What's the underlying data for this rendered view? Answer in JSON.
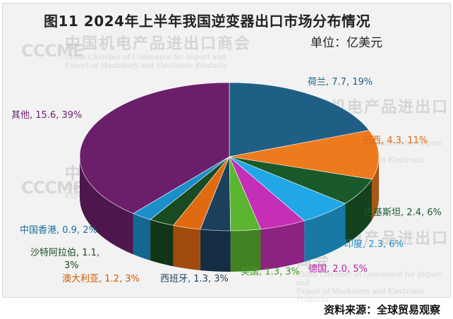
{
  "title": "图11    2024年上半年我国逆变器出口市场分布情况",
  "unit": "单位：亿美元",
  "source": "资料来源：全球贸易观察",
  "watermark": {
    "cn": "中国机电产品进出口商会",
    "en1": "China Chamber of Commerce for Import and",
    "en2": "Export of Machinery and Electronic Products",
    "logo": "CCCME"
  },
  "chart_data": {
    "type": "pie",
    "title": "2024年上半年我国逆变器出口市场分布情况",
    "unit": "亿美元",
    "slices": [
      {
        "name": "荷兰",
        "value": 7.7,
        "percent": "19%",
        "label": "荷兰, 7.7, 19%",
        "color": "#1f5f86",
        "label_color": "#1f5f86"
      },
      {
        "name": "巴西",
        "value": 4.3,
        "percent": "11%",
        "label": "巴西, 4.3, 11%",
        "color": "#ee7a1e",
        "label_color": "#e06a10"
      },
      {
        "name": "巴基斯坦",
        "value": 2.4,
        "percent": "6%",
        "label": "巴基斯坦, 2.4, 6%",
        "color": "#1a5a2a",
        "label_color": "#1a5a2a"
      },
      {
        "name": "印度",
        "value": 2.3,
        "percent": "6%",
        "label": "印度, 2.3, 6%",
        "color": "#22a7e6",
        "label_color": "#1a8fd0"
      },
      {
        "name": "德国",
        "value": 2.0,
        "percent": "5%",
        "label": "德国, 2.0, 5%",
        "color": "#c42fb6",
        "label_color": "#b0209f"
      },
      {
        "name": "美国",
        "value": 1.3,
        "percent": "3%",
        "label": "美国, 1.3, 3%",
        "color": "#5cb531",
        "label_color": "#3f9a20"
      },
      {
        "name": "西班牙",
        "value": 1.3,
        "percent": "3%",
        "label": "西班牙, 1.3, 3%",
        "color": "#1c3f5c",
        "label_color": "#1c3f5c"
      },
      {
        "name": "澳大利亚",
        "value": 1.2,
        "percent": "3%",
        "label": "澳大利亚, 1.2, 3%",
        "color": "#e06a10",
        "label_color": "#d05a00"
      },
      {
        "name": "沙特阿拉伯",
        "value": 1.1,
        "percent": "3%",
        "label": "沙特阿拉伯, 1.1, 3%",
        "color": "#1a4a20",
        "label_color": "#1a4a20"
      },
      {
        "name": "中国香港",
        "value": 0.9,
        "percent": "2%",
        "label": "中国香港, 0.9, 2%",
        "color": "#1a8fc9",
        "label_color": "#1a6f9a"
      },
      {
        "name": "其他",
        "value": 15.6,
        "percent": "39%",
        "label": "其他, 15.6, 39%",
        "color": "#6b1f6b",
        "label_color": "#6b1f6b"
      }
    ]
  }
}
